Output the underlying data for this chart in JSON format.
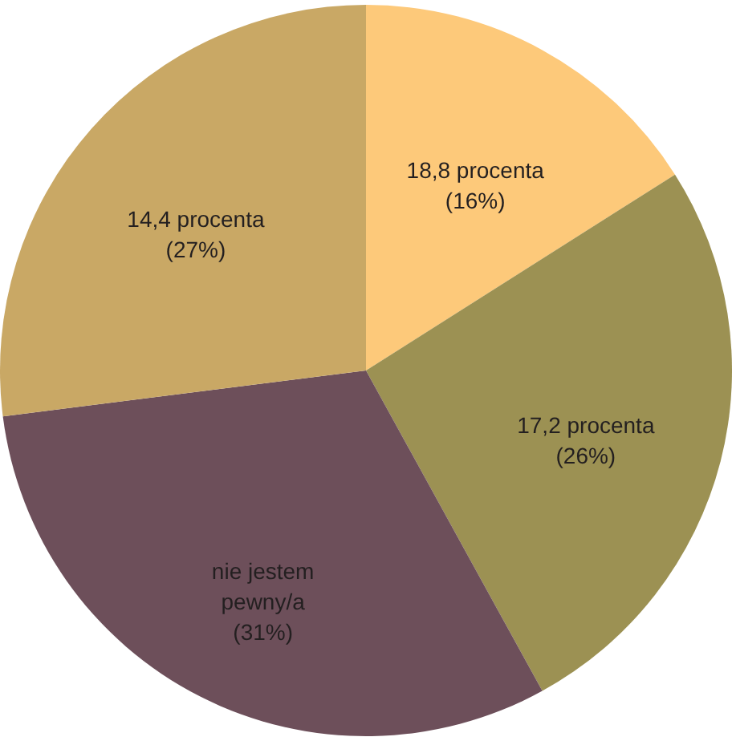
{
  "chart_data": {
    "type": "pie",
    "categories": [
      "18,8 procenta",
      "17,2 procenta",
      "nie jestem pewny/a",
      "14,4 procenta"
    ],
    "values": [
      16,
      26,
      31,
      27
    ],
    "value_labels": [
      "(16%)",
      "(26%)",
      "(31%)",
      "(27%)"
    ],
    "colors": [
      "#fdc97a",
      "#9c9153",
      "#6d4f5a",
      "#c9a865"
    ]
  }
}
